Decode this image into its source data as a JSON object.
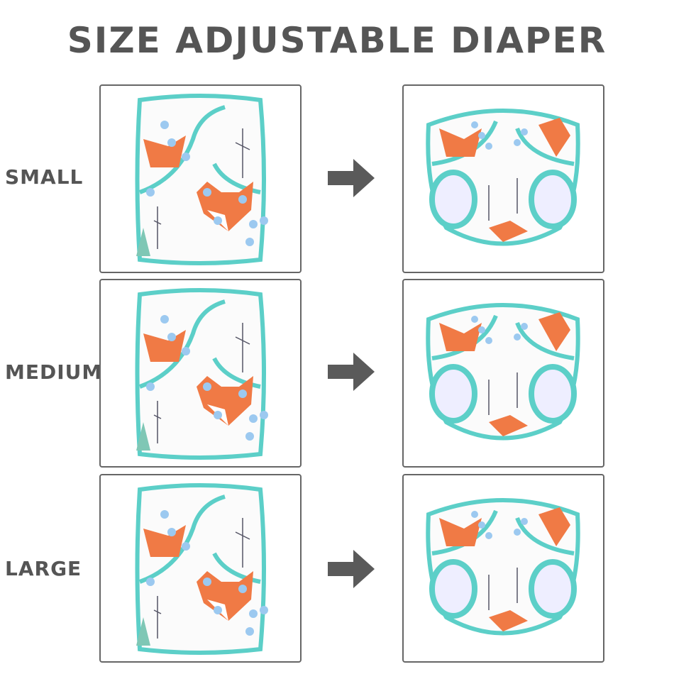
{
  "title": "SIZE ADJUSTABLE DIAPER",
  "rows": [
    {
      "label": "SMALL"
    },
    {
      "label": "MEDIUM"
    },
    {
      "label": "LARGE"
    }
  ],
  "colors": {
    "title": "#555555",
    "trim": "#5ccfc8",
    "fox": "#f07a45",
    "snap": "#9cc9f0",
    "arrow": "#5a5a5a"
  },
  "icons": {
    "arrow": "arrow-right-icon"
  }
}
